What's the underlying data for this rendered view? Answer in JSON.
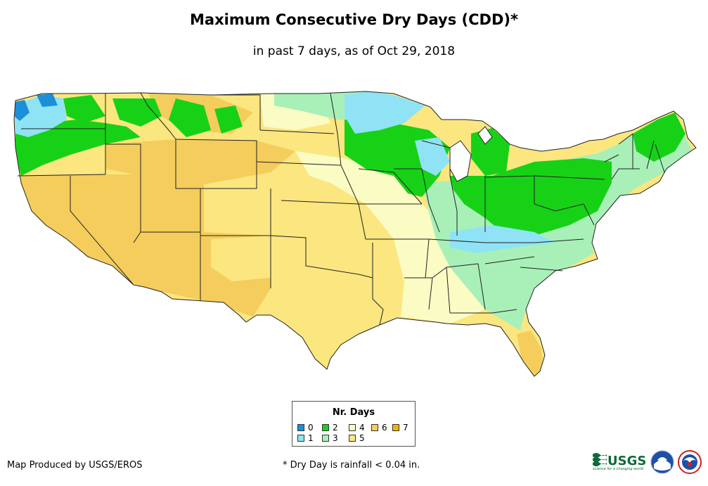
{
  "title": "Maximum Consecutive Dry Days (CDD)*",
  "subtitle": "in past 7 days, as of Oct 29, 2018",
  "legend": {
    "title": "Nr. Days",
    "items": [
      {
        "label": "0",
        "color": "#1c8fd9"
      },
      {
        "label": "1",
        "color": "#8fe3f5"
      },
      {
        "label": "2",
        "color": "#17d117"
      },
      {
        "label": "3",
        "color": "#a8f0b8"
      },
      {
        "label": "4",
        "color": "#fafcc4"
      },
      {
        "label": "5",
        "color": "#fbe680"
      },
      {
        "label": "6",
        "color": "#f4cd5c"
      },
      {
        "label": "7",
        "color": "#f4b300"
      }
    ]
  },
  "credit": "Map Produced by USGS/EROS",
  "footnote": "* Dry Day is rainfall < 0.04 in.",
  "logos": {
    "usgs_text": "USGS",
    "usgs_tagline": "science for a changing world"
  }
}
